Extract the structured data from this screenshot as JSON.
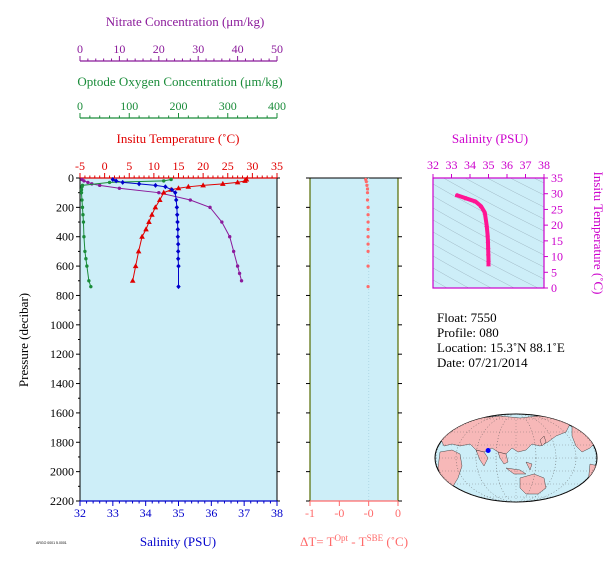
{
  "colors": {
    "panel_bg": "#cdeef8",
    "nitrate": "#8b1a9b",
    "oxygen": "#1a8c3a",
    "temperature": "#e00000",
    "salinity": "#0000cc",
    "delta_t": "#ff6a6a",
    "ts_curve": "#ff1493",
    "ts_axis": "#cc00cc",
    "land": "#f7b8b8",
    "ocean": "#cdeef8"
  },
  "chart_data": [
    {
      "type": "scatter",
      "name": "profile",
      "ylabel": "Pressure (decibar)",
      "ylim": [
        2200,
        0
      ],
      "yticks": [
        "0",
        "200",
        "400",
        "600",
        "800",
        "1000",
        "1200",
        "1400",
        "1600",
        "1800",
        "2000",
        "2200"
      ],
      "axes": {
        "nitrate": {
          "label": "Nitrate Concentration (μm/kg)",
          "lim": [
            0,
            50
          ],
          "ticks": [
            "0",
            "10",
            "20",
            "30",
            "40",
            "50"
          ]
        },
        "oxygen": {
          "label": "Optode Oxygen Concentration (μm/kg)",
          "lim": [
            0,
            400
          ],
          "ticks": [
            "0",
            "100",
            "200",
            "300",
            "400"
          ]
        },
        "temperature": {
          "label": "Insitu Temperature (˚C)",
          "lim": [
            -5,
            35
          ],
          "ticks": [
            "-5",
            "0",
            "5",
            "10",
            "15",
            "20",
            "25",
            "30",
            "35"
          ]
        },
        "salinity": {
          "label": "Salinity (PSU)",
          "lim": [
            32,
            38
          ],
          "ticks": [
            "32",
            "33",
            "34",
            "35",
            "36",
            "37",
            "38"
          ]
        }
      },
      "series": [
        {
          "name": "nitrate",
          "x": [
            0.5,
            1,
            2,
            3,
            5,
            10,
            20,
            28,
            33,
            36,
            38,
            39,
            40,
            40.5,
            41
          ],
          "y": [
            10,
            20,
            30,
            40,
            50,
            70,
            100,
            150,
            200,
            300,
            400,
            500,
            600,
            650,
            700
          ]
        },
        {
          "name": "oxygen",
          "x": [
            185,
            170,
            60,
            5,
            4,
            3,
            3,
            4,
            5,
            6,
            7,
            8,
            10,
            12,
            14,
            18,
            22
          ],
          "y": [
            10,
            20,
            30,
            50,
            60,
            80,
            100,
            150,
            200,
            250,
            300,
            400,
            500,
            550,
            600,
            700,
            740
          ]
        },
        {
          "name": "temperature",
          "x": [
            28.8,
            28.5,
            27,
            24,
            20,
            17,
            15,
            13.5,
            12,
            11.2,
            10.3,
            9.6,
            9.0,
            8.4,
            7.6,
            6.9,
            6.3,
            5.7
          ],
          "y": [
            10,
            20,
            30,
            40,
            50,
            60,
            70,
            80,
            100,
            150,
            200,
            250,
            300,
            350,
            400,
            500,
            600,
            700
          ]
        },
        {
          "name": "salinity",
          "x": [
            33.0,
            33.1,
            33.3,
            33.8,
            34.3,
            34.6,
            34.8,
            34.9,
            34.93,
            34.95,
            34.96,
            34.97,
            34.98,
            34.98,
            34.99,
            34.99,
            34.99,
            35.0,
            35.0
          ],
          "y": [
            10,
            20,
            30,
            40,
            50,
            60,
            80,
            100,
            150,
            200,
            250,
            300,
            350,
            400,
            450,
            500,
            550,
            600,
            740
          ]
        }
      ]
    },
    {
      "type": "scatter",
      "name": "temperature-difference",
      "xlabel": "ΔT= T",
      "xlabel_sup1": "Opt",
      "xlabel_mid": " - T",
      "xlabel_sup2": "SBE",
      "xlabel_unit": " (˚C)",
      "xlim": [
        -1,
        0.5
      ],
      "xticks": [
        "-1",
        "-0",
        "-0",
        "0"
      ],
      "x": [
        -0.05,
        -0.04,
        -0.03,
        -0.02,
        -0.02,
        -0.02,
        -0.01,
        -0.01,
        -0.01,
        -0.01,
        -0.01,
        -0.01,
        -0.01,
        -0.01,
        -0.01
      ],
      "y": [
        10,
        25,
        50,
        75,
        100,
        150,
        200,
        250,
        300,
        350,
        400,
        450,
        500,
        600,
        740
      ]
    },
    {
      "type": "line",
      "name": "ts-diagram",
      "title": "Salinity (PSU)",
      "ylabel": "Insitu Temperature (˚C)",
      "xlim": [
        32,
        38
      ],
      "ylim": [
        0,
        35
      ],
      "xticks": [
        "32",
        "33",
        "34",
        "35",
        "36",
        "37",
        "38"
      ],
      "yticks": [
        "0",
        "5",
        "10",
        "15",
        "20",
        "25",
        "30",
        "35"
      ],
      "x": [
        33.3,
        33.8,
        34.3,
        34.6,
        34.8,
        34.9,
        34.95,
        34.97,
        34.98,
        34.99,
        35.0,
        35.0
      ],
      "y": [
        29.5,
        28.5,
        27.5,
        26.0,
        24.0,
        20.0,
        17.0,
        15.0,
        13.0,
        11.0,
        9.0,
        7.5
      ]
    }
  ],
  "info": {
    "float": "Float:  7550",
    "profile": "Profile:  080",
    "location": "Location:  15.3˚N  88.1˚E",
    "date": "Date:  07/21/2014"
  },
  "footer_mark": "ARGO 0001 5.0001",
  "map": {
    "marker_lon": 88.1,
    "marker_lat": 15.3
  }
}
